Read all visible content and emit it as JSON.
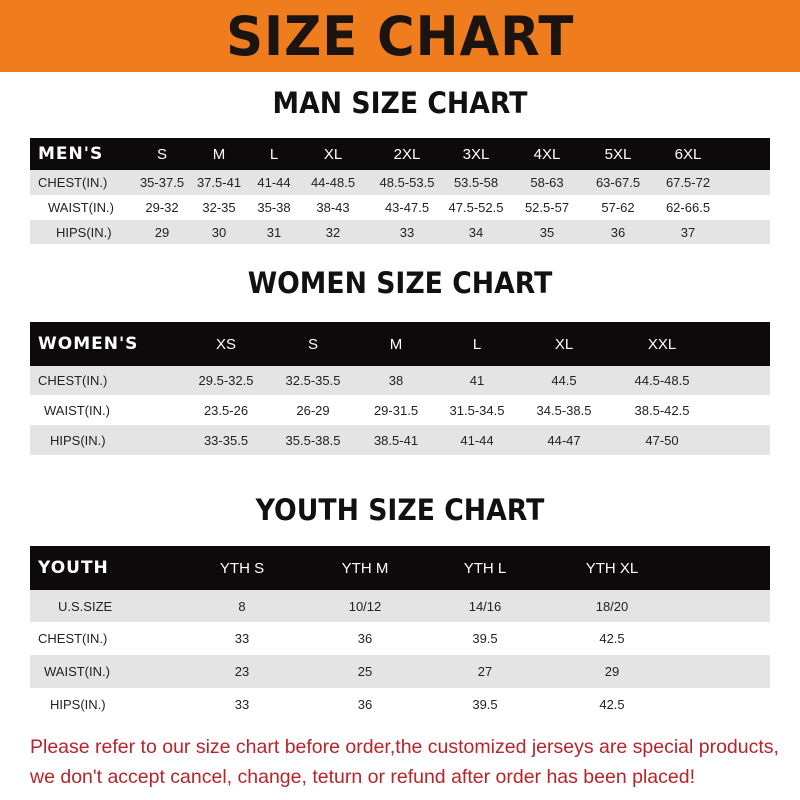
{
  "banner": {
    "title": "SIZE CHART",
    "color": "#ef7d1e"
  },
  "men": {
    "title": "MAN SIZE CHART",
    "header": "MEN'S",
    "sizes": [
      "S",
      "M",
      "L",
      "XL",
      "2XL",
      "3XL",
      "4XL",
      "5XL",
      "6XL"
    ],
    "rows": [
      {
        "label": "CHEST(IN.)",
        "values": [
          "35-37.5",
          "37.5-41",
          "41-44",
          "44-48.5",
          "48.5-53.5",
          "53.5-58",
          "58-63",
          "63-67.5",
          "67.5-72"
        ]
      },
      {
        "label": "WAIST(IN.)",
        "values": [
          "29-32",
          "32-35",
          "35-38",
          "38-43",
          "43-47.5",
          "47.5-52.5",
          "52.5-57",
          "57-62",
          "62-66.5"
        ]
      },
      {
        "label": "HIPS(IN.)",
        "values": [
          "29",
          "30",
          "31",
          "32",
          "33",
          "34",
          "35",
          "36",
          "37"
        ]
      }
    ]
  },
  "women": {
    "title": "WOMEN SIZE CHART",
    "header": "WOMEN'S",
    "sizes": [
      "XS",
      "S",
      "M",
      "L",
      "XL",
      "XXL"
    ],
    "rows": [
      {
        "label": "CHEST(IN.)",
        "values": [
          "29.5-32.5",
          "32.5-35.5",
          "38",
          "41",
          "44.5",
          "44.5-48.5"
        ]
      },
      {
        "label": "WAIST(IN.)",
        "values": [
          "23.5-26",
          "26-29",
          "29-31.5",
          "31.5-34.5",
          "34.5-38.5",
          "38.5-42.5"
        ]
      },
      {
        "label": "HIPS(IN.)",
        "values": [
          "33-35.5",
          "35.5-38.5",
          "38.5-41",
          "41-44",
          "44-47",
          "47-50"
        ]
      }
    ]
  },
  "youth": {
    "title": "YOUTH SIZE CHART",
    "header": "YOUTH",
    "sizes": [
      "YTH S",
      "YTH M",
      "YTH L",
      "YTH XL"
    ],
    "rows": [
      {
        "label": "U.S.SIZE",
        "values": [
          "8",
          "10/12",
          "14/16",
          "18/20"
        ]
      },
      {
        "label": "CHEST(IN.)",
        "values": [
          "33",
          "36",
          "39.5",
          "42.5"
        ]
      },
      {
        "label": "WAIST(IN.)",
        "values": [
          "23",
          "25",
          "27",
          "29"
        ]
      },
      {
        "label": "HIPS(IN.)",
        "values": [
          "33",
          "36",
          "39.5",
          "42.5"
        ]
      }
    ]
  },
  "notice": {
    "line1": "Please refer to our size chart before order,the customized jerseys are special products,",
    "line2": "we don't accept cancel, change, teturn or refund after order has been placed!",
    "color": "#b8242a"
  }
}
